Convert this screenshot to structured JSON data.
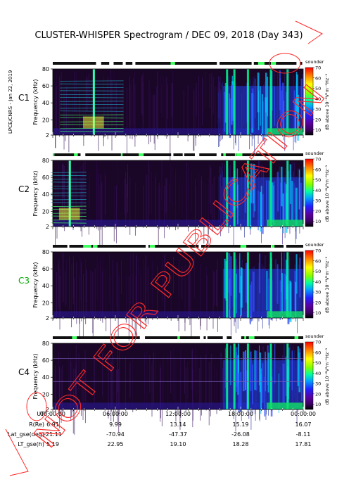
{
  "chart_data": {
    "type": "heatmap",
    "title": "CLUSTER-WHISPER Spectrogram / DEC 09, 2018 (Day 343)",
    "credit": "LPCE/CNRS - Jan 22, 2019",
    "stamp": "NOT FOR PUBLICATION",
    "ylabel": "Frequency (kHz)",
    "ylim": [
      2,
      80
    ],
    "yticks": [
      2,
      20,
      40,
      60,
      80
    ],
    "xticks": [
      "00:00:00",
      "06:00:00",
      "12:00:00",
      "18:00:00",
      "00:00:00"
    ],
    "xlim_hours": [
      0,
      24
    ],
    "colorbar": {
      "label": "dB above 10⁻⁸V²m⁻²Hz⁻¹",
      "top_label": "sounder",
      "ticks": [
        10,
        20,
        30,
        40,
        50,
        60,
        70
      ],
      "range": [
        5,
        70
      ],
      "colors": [
        "#000000",
        "#3b0060",
        "#5a00a0",
        "#2020ff",
        "#00a0ff",
        "#00ffa0",
        "#80ff00",
        "#ffff00",
        "#ff8000",
        "#ff0000"
      ]
    },
    "panels": [
      {
        "name": "C1",
        "label_color": "#000000"
      },
      {
        "name": "C2",
        "label_color": "#000000"
      },
      {
        "name": "C3",
        "label_color": "#00aa00"
      },
      {
        "name": "C4",
        "label_color": "#000000"
      }
    ],
    "ephemeris": {
      "rows": [
        {
          "label": "UT",
          "values": [
            "00:00:00",
            "06:00:00",
            "12:00:00",
            "18:00:00",
            "00:00:00"
          ]
        },
        {
          "label": "R(Re)",
          "values": [
            "6.91",
            "9.99",
            "13.14",
            "15.19",
            "16.07"
          ]
        },
        {
          "label": "Lat_gse(deg)",
          "values": [
            "-21.11",
            "-70.94",
            "-47.37",
            "-26.08",
            "-8.11"
          ]
        },
        {
          "label": "LT_gse(h)",
          "values": [
            "5.19",
            "22.95",
            "19.10",
            "18.28",
            "17.81"
          ]
        }
      ]
    }
  }
}
